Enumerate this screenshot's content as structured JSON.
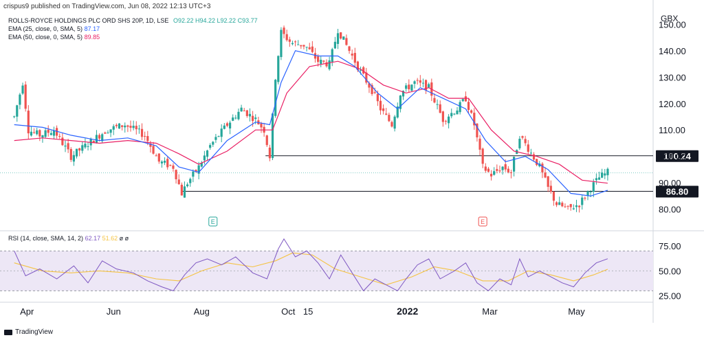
{
  "header": {
    "published": "crispus9 published on TradingView.com, Jun 08, 2022 12:13 UTC+3",
    "symbol": "ROLLS-ROYCE HOLDINGS PLC ORD SHS 20P, 1D, LSE",
    "ohlc": {
      "o": "O92.22",
      "h": "H94.22",
      "l": "L92.22",
      "c": "C93.77"
    },
    "ema25_label": "EMA (25, close, 0, SMA, 5)",
    "ema25_value": "87.17",
    "ema50_label": "EMA (50, close, 0, SMA, 5)",
    "ema50_value": "89.85",
    "rsi_label": "RSI (14, close, SMA, 14, 2)",
    "rsi_value": "62.17",
    "rsi_ma_value": "51.62",
    "rsi_extra": "ø ø",
    "currency": "GBX"
  },
  "footer": {
    "brand": "TradingView"
  },
  "colors": {
    "up": "#26a69a",
    "down": "#ef5350",
    "ema25": "#2962ff",
    "ema50": "#e91e63",
    "rsi": "#7e57c2",
    "rsi_ma": "#f5c342",
    "rsi_band": "#ede7f6"
  },
  "chart_data": {
    "type": "candlestick",
    "price_axis": {
      "ticks": [
        80,
        90,
        100,
        110,
        120,
        130,
        140,
        150
      ],
      "labels": [
        "80.00",
        "90.00",
        "100.00",
        "110.00",
        "120.00",
        "130.00",
        "140.00",
        "150.00"
      ],
      "range": [
        76,
        154
      ]
    },
    "x_labels": [
      {
        "label": "Apr",
        "day": 9
      },
      {
        "label": "Jun",
        "day": 70
      },
      {
        "label": "Aug",
        "day": 132
      },
      {
        "label": "Oct",
        "day": 193
      },
      {
        "label": "15",
        "day": 207
      },
      {
        "label": "2022",
        "day": 277
      },
      {
        "label": "Mar",
        "day": 335
      },
      {
        "label": "May",
        "day": 396
      }
    ],
    "day_range": [
      -10,
      450
    ],
    "horizontal_lines": [
      {
        "value": 100.24,
        "label": "100.24",
        "from_day": 177
      },
      {
        "value": 86.8,
        "label": "86.80",
        "from_day": 118
      }
    ],
    "earnings_markers": [
      {
        "day": 140,
        "label": "E"
      },
      {
        "day": 330,
        "label": "E"
      }
    ],
    "price_path": [
      [
        0,
        115
      ],
      [
        6,
        128
      ],
      [
        10,
        110
      ],
      [
        18,
        108
      ],
      [
        28,
        110
      ],
      [
        40,
        100
      ],
      [
        55,
        106
      ],
      [
        65,
        110
      ],
      [
        78,
        112
      ],
      [
        92,
        108
      ],
      [
        102,
        98
      ],
      [
        112,
        96
      ],
      [
        118,
        86
      ],
      [
        122,
        90
      ],
      [
        130,
        96
      ],
      [
        138,
        104
      ],
      [
        150,
        112
      ],
      [
        160,
        118
      ],
      [
        170,
        114
      ],
      [
        176,
        110
      ],
      [
        180,
        100
      ],
      [
        184,
        130
      ],
      [
        188,
        147
      ],
      [
        195,
        143
      ],
      [
        205,
        142
      ],
      [
        214,
        136
      ],
      [
        222,
        135
      ],
      [
        228,
        148
      ],
      [
        236,
        140
      ],
      [
        244,
        132
      ],
      [
        252,
        125
      ],
      [
        258,
        118
      ],
      [
        266,
        112
      ],
      [
        272,
        124
      ],
      [
        282,
        128
      ],
      [
        292,
        126
      ],
      [
        302,
        114
      ],
      [
        312,
        118
      ],
      [
        318,
        122
      ],
      [
        324,
        112
      ],
      [
        330,
        96
      ],
      [
        336,
        93
      ],
      [
        344,
        96
      ],
      [
        350,
        94
      ],
      [
        356,
        108
      ],
      [
        362,
        103
      ],
      [
        370,
        96
      ],
      [
        376,
        88
      ],
      [
        382,
        82
      ],
      [
        390,
        80
      ],
      [
        398,
        82
      ],
      [
        406,
        88
      ],
      [
        412,
        92
      ],
      [
        418,
        94
      ]
    ],
    "ema25_path": [
      [
        0,
        112
      ],
      [
        20,
        111
      ],
      [
        40,
        108
      ],
      [
        60,
        106
      ],
      [
        80,
        107
      ],
      [
        100,
        104
      ],
      [
        116,
        96
      ],
      [
        130,
        94
      ],
      [
        150,
        106
      ],
      [
        170,
        113
      ],
      [
        180,
        112
      ],
      [
        188,
        128
      ],
      [
        198,
        140
      ],
      [
        214,
        138
      ],
      [
        228,
        138
      ],
      [
        240,
        134
      ],
      [
        256,
        124
      ],
      [
        270,
        118
      ],
      [
        286,
        126
      ],
      [
        302,
        122
      ],
      [
        318,
        118
      ],
      [
        332,
        106
      ],
      [
        346,
        98
      ],
      [
        360,
        100
      ],
      [
        376,
        95
      ],
      [
        392,
        86
      ],
      [
        406,
        85
      ],
      [
        418,
        87.17
      ]
    ],
    "ema50_path": [
      [
        0,
        106
      ],
      [
        20,
        107
      ],
      [
        40,
        106
      ],
      [
        60,
        105
      ],
      [
        80,
        106
      ],
      [
        100,
        105
      ],
      [
        116,
        101
      ],
      [
        130,
        97
      ],
      [
        150,
        102
      ],
      [
        170,
        110
      ],
      [
        182,
        110
      ],
      [
        192,
        124
      ],
      [
        208,
        134
      ],
      [
        228,
        136
      ],
      [
        244,
        133
      ],
      [
        260,
        127
      ],
      [
        276,
        124
      ],
      [
        292,
        126
      ],
      [
        306,
        122
      ],
      [
        320,
        122
      ],
      [
        336,
        110
      ],
      [
        352,
        102
      ],
      [
        368,
        100
      ],
      [
        384,
        97
      ],
      [
        400,
        91
      ],
      [
        418,
        89.85
      ]
    ],
    "current_price": 93.77,
    "rsi": {
      "levels": [
        {
          "value": 75,
          "label": "75.00"
        },
        {
          "value": 50,
          "label": "50.00"
        },
        {
          "value": 25,
          "label": "25.00"
        }
      ],
      "band": [
        30,
        70
      ],
      "range": [
        22,
        84
      ],
      "rsi_path": [
        [
          0,
          70
        ],
        [
          8,
          45
        ],
        [
          18,
          52
        ],
        [
          30,
          42
        ],
        [
          42,
          55
        ],
        [
          52,
          38
        ],
        [
          62,
          60
        ],
        [
          72,
          52
        ],
        [
          84,
          48
        ],
        [
          94,
          40
        ],
        [
          104,
          34
        ],
        [
          112,
          30
        ],
        [
          120,
          46
        ],
        [
          128,
          58
        ],
        [
          136,
          62
        ],
        [
          146,
          56
        ],
        [
          156,
          64
        ],
        [
          168,
          48
        ],
        [
          178,
          42
        ],
        [
          186,
          72
        ],
        [
          190,
          82
        ],
        [
          198,
          64
        ],
        [
          206,
          70
        ],
        [
          214,
          58
        ],
        [
          222,
          42
        ],
        [
          230,
          66
        ],
        [
          238,
          48
        ],
        [
          246,
          30
        ],
        [
          254,
          42
        ],
        [
          262,
          36
        ],
        [
          270,
          30
        ],
        [
          276,
          42
        ],
        [
          284,
          56
        ],
        [
          292,
          62
        ],
        [
          300,
          42
        ],
        [
          310,
          50
        ],
        [
          318,
          58
        ],
        [
          326,
          38
        ],
        [
          334,
          30
        ],
        [
          342,
          42
        ],
        [
          350,
          36
        ],
        [
          356,
          62
        ],
        [
          362,
          44
        ],
        [
          370,
          50
        ],
        [
          378,
          44
        ],
        [
          386,
          38
        ],
        [
          394,
          34
        ],
        [
          402,
          48
        ],
        [
          410,
          58
        ],
        [
          418,
          62.17
        ]
      ],
      "rsi_ma_path": [
        [
          0,
          58
        ],
        [
          20,
          50
        ],
        [
          40,
          48
        ],
        [
          60,
          50
        ],
        [
          80,
          48
        ],
        [
          100,
          42
        ],
        [
          116,
          40
        ],
        [
          132,
          50
        ],
        [
          150,
          58
        ],
        [
          168,
          54
        ],
        [
          184,
          60
        ],
        [
          196,
          68
        ],
        [
          210,
          66
        ],
        [
          226,
          52
        ],
        [
          244,
          44
        ],
        [
          262,
          36
        ],
        [
          280,
          44
        ],
        [
          296,
          54
        ],
        [
          312,
          50
        ],
        [
          330,
          40
        ],
        [
          348,
          40
        ],
        [
          362,
          50
        ],
        [
          378,
          46
        ],
        [
          394,
          40
        ],
        [
          408,
          46
        ],
        [
          418,
          51.62
        ]
      ]
    }
  }
}
